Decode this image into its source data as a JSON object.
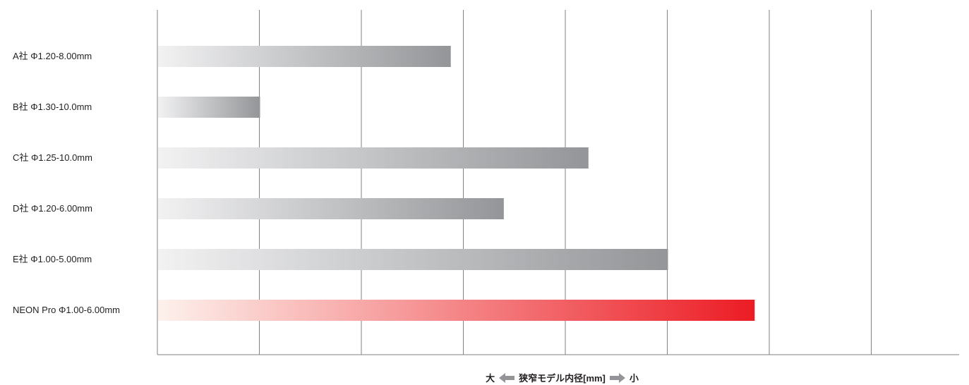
{
  "chart_data": {
    "type": "bar",
    "orientation": "horizontal",
    "categories": [
      "A社 Φ1.20-8.00mm",
      "B社 Φ1.30-10.0mm",
      "C社 Φ1.25-10.0mm",
      "D社 Φ1.20-6.00mm",
      "E社 Φ1.00-5.00mm",
      "NEON Pro Φ1.00-6.00mm"
    ],
    "values": [
      2.87,
      1.0,
      4.22,
      3.39,
      5.0,
      5.85
    ],
    "xlim": [
      0,
      8
    ],
    "grid": true,
    "highlight_index": 5,
    "title": "",
    "xlabel": "狭窄モデル内径[mm]",
    "xlabel_left": "大",
    "xlabel_right": "小",
    "ylabel": ""
  },
  "colors": {
    "bar_start": "#f2f2f3",
    "bar_end": "#939598",
    "highlight_start": "#fdf1ec",
    "highlight_end": "#ec1c24",
    "gridline": "#808285",
    "arrow": "#939598",
    "text": "#231f20"
  }
}
